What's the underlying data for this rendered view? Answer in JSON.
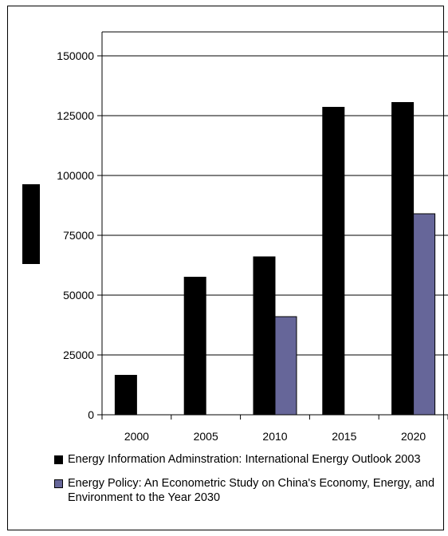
{
  "chart_data": {
    "type": "bar",
    "title": "",
    "xlabel": "",
    "ylabel": "",
    "categories": [
      "2000",
      "2005",
      "2010",
      "2015",
      "2020"
    ],
    "series": [
      {
        "name": "Energy Information Adminstration: International Energy Outlook 2003",
        "color": "#000000",
        "values": [
          16500,
          57500,
          66000,
          128500,
          130500
        ]
      },
      {
        "name": "Energy Policy: An Econometric Study on China's Economy, Energy, and Environment to the Year 2030",
        "color": "#666699",
        "values": [
          null,
          null,
          41000,
          null,
          84000
        ]
      }
    ],
    "ylim": [
      0,
      160000
    ],
    "yticks": [
      "0",
      "25000",
      "50000",
      "75000",
      "100000",
      "125000",
      "150000"
    ],
    "grid": true,
    "legend_position": "bottom"
  }
}
